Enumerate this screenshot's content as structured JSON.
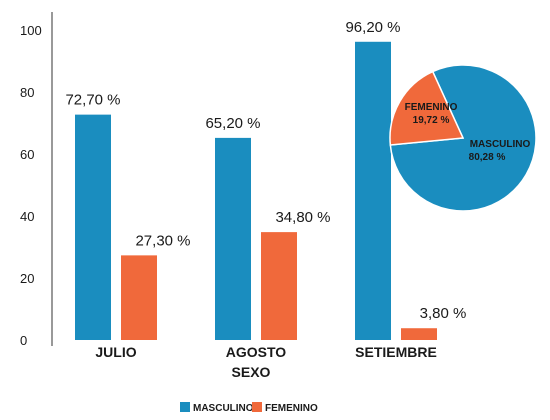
{
  "chart_data": [
    {
      "type": "bar",
      "categories": [
        "JULIO",
        "AGOSTO",
        "SETIEMBRE"
      ],
      "series": [
        {
          "name": "MASCULINO",
          "values": [
            72.7,
            65.2,
            96.2
          ],
          "labels": [
            "72,70 %",
            "65,20 %",
            "96,20 %"
          ]
        },
        {
          "name": "FEMENINO",
          "values": [
            27.3,
            34.8,
            3.8
          ],
          "labels": [
            "27,30 %",
            "34,80 %",
            "3,80 %"
          ]
        }
      ],
      "xlabel": "SEXO",
      "ylabel": "",
      "ylim": [
        0,
        100
      ],
      "yticks": [
        "0",
        "20",
        "40",
        "60",
        "80",
        "100"
      ],
      "legend": "bottom-center",
      "grid": false
    },
    {
      "type": "pie",
      "categories": [
        "MASCULINO",
        "FEMENINO"
      ],
      "values": [
        80.28,
        19.72
      ],
      "labels": [
        "80,28 %",
        "19,72 %"
      ],
      "legend": "none"
    }
  ],
  "colors": {
    "MASCULINO": "#1a8dbf",
    "FEMENINO": "#f0693b"
  }
}
